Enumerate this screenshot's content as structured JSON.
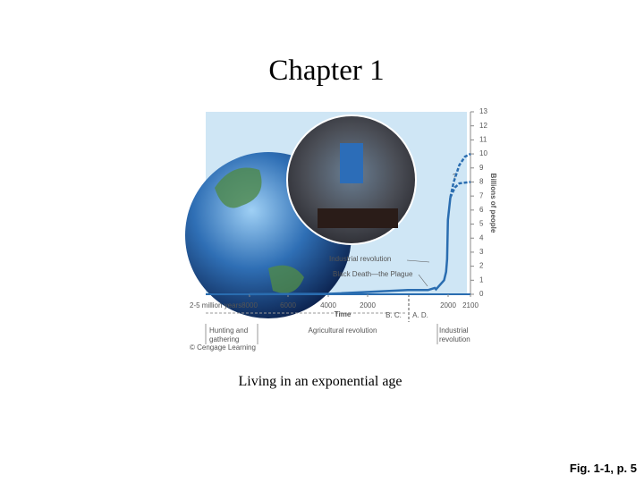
{
  "title": "Chapter 1",
  "caption": "Living in an exponential age",
  "figure_ref": "Fig. 1-1, p. 5",
  "chart_data": {
    "type": "line",
    "x_label": "Time",
    "y_label": "Billions of people",
    "x_start_label": "2-5 million years",
    "era_labels": [
      "B. C.",
      "A. D."
    ],
    "eras": [
      "Hunting and gathering",
      "Agricultural revolution",
      "Industrial revolution"
    ],
    "annotations": [
      "Industrial revolution",
      "Black Death—the Plague",
      "?"
    ],
    "credit": "© Cengage Learning",
    "xticks": [
      {
        "value": -8000,
        "label": "8000"
      },
      {
        "value": -6000,
        "label": "6000"
      },
      {
        "value": -4000,
        "label": "4000"
      },
      {
        "value": -2000,
        "label": "2000"
      },
      {
        "value": 2000,
        "label": "2000"
      },
      {
        "value": 2100,
        "label": "2100"
      }
    ],
    "ylim": [
      0,
      13
    ],
    "yticks": [
      0,
      1,
      2,
      3,
      4,
      5,
      6,
      7,
      8,
      9,
      10,
      11,
      12,
      13
    ],
    "series": [
      {
        "color": "#2a6db0",
        "style": "solid",
        "x": [
          -8000,
          -4000,
          0,
          1000,
          1340,
          1400,
          1800,
          1900,
          1950,
          1990,
          2010
        ],
        "values": [
          0.005,
          0.03,
          0.3,
          0.3,
          0.45,
          0.35,
          1,
          1.6,
          2.5,
          5.3,
          6.9
        ]
      },
      {
        "color": "#2a6db0",
        "style": "dashed",
        "x": [
          2010,
          2025,
          2050,
          2075,
          2100
        ],
        "values": [
          6.9,
          8,
          9.2,
          9.8,
          10
        ]
      },
      {
        "color": "#2a6db0",
        "style": "dashed",
        "x": [
          2010,
          2030,
          2050,
          2100
        ],
        "values": [
          6.9,
          7.6,
          7.9,
          8
        ]
      }
    ]
  }
}
